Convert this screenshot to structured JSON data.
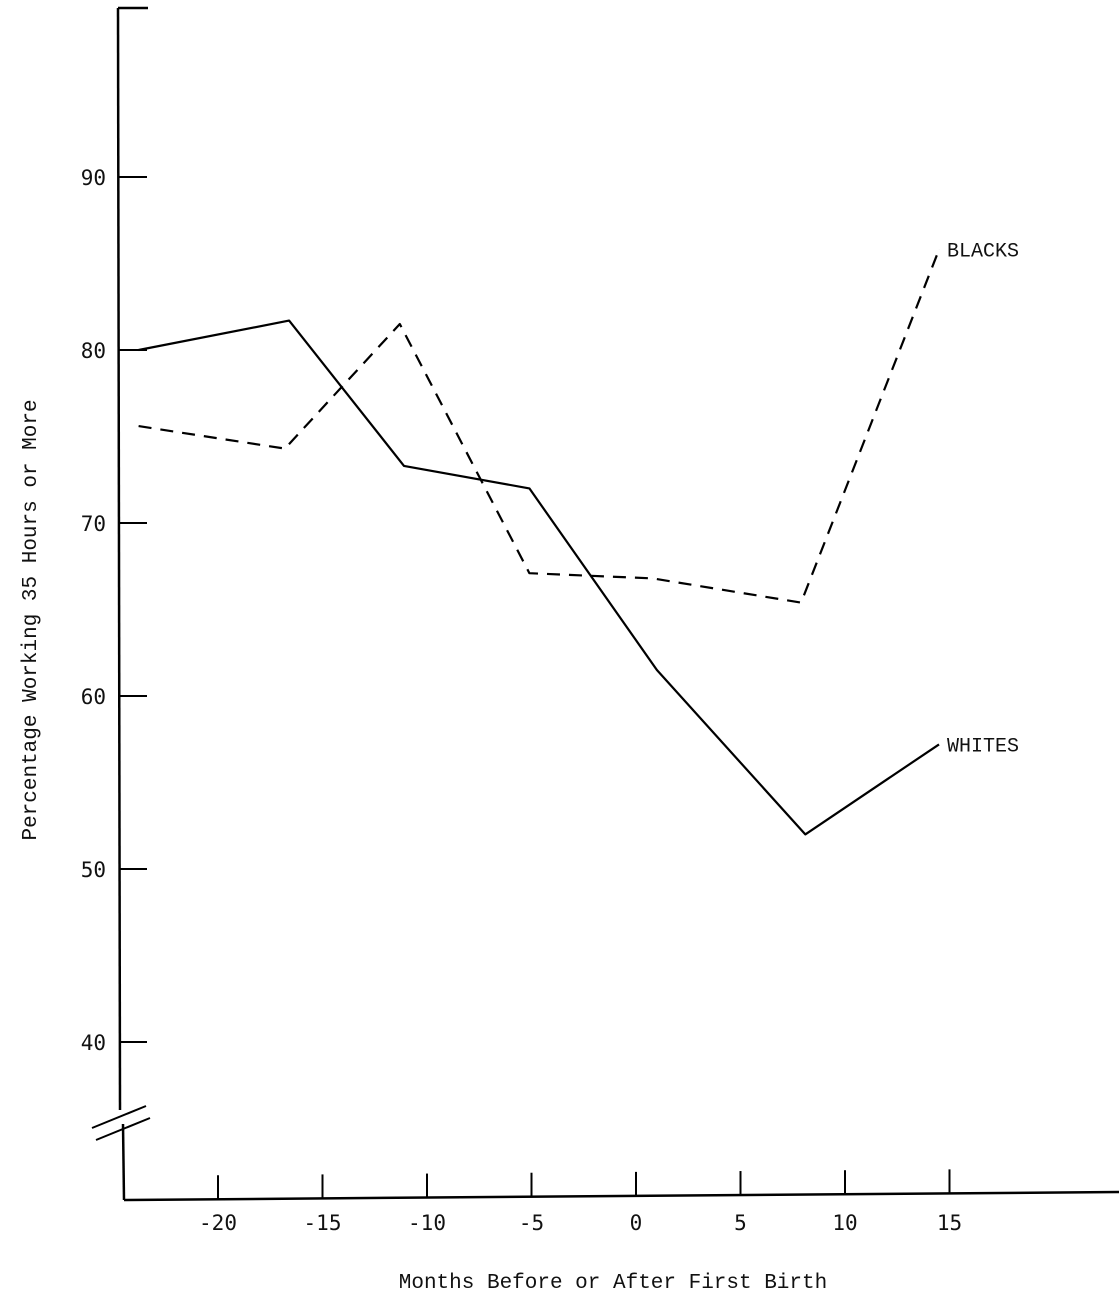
{
  "chart_data": {
    "type": "line",
    "xlabel": "Months Before or After First Birth",
    "ylabel": "Percentage Working 35 Hours or More",
    "xlim": [
      -25,
      20
    ],
    "ylim": [
      35,
      98
    ],
    "x_ticks": [
      -20,
      -15,
      -10,
      -5,
      0,
      5,
      10,
      15
    ],
    "x_tick_labels": [
      "-20",
      "-15",
      "-10",
      "-5",
      "0",
      "5",
      "10",
      "15"
    ],
    "y_ticks": [
      40,
      50,
      60,
      70,
      80,
      90
    ],
    "y_tick_labels": [
      "40",
      "50",
      "60",
      "70",
      "80",
      "90"
    ],
    "axis_break": true,
    "grid": false,
    "series": [
      {
        "name": "WHITES",
        "style": "solid",
        "color": "#000000",
        "x": [
          -23.8,
          -16.6,
          -11.1,
          -5.1,
          1.0,
          8.1,
          14.5
        ],
        "y": [
          80.0,
          81.7,
          73.3,
          72.0,
          61.5,
          52.0,
          57.2
        ]
      },
      {
        "name": "BLACKS",
        "style": "dashed",
        "color": "#000000",
        "x": [
          -23.8,
          -16.8,
          -11.3,
          -5.1,
          0.8,
          7.9,
          14.5
        ],
        "y": [
          75.6,
          74.3,
          81.5,
          67.1,
          66.8,
          65.4,
          85.8
        ]
      }
    ]
  }
}
